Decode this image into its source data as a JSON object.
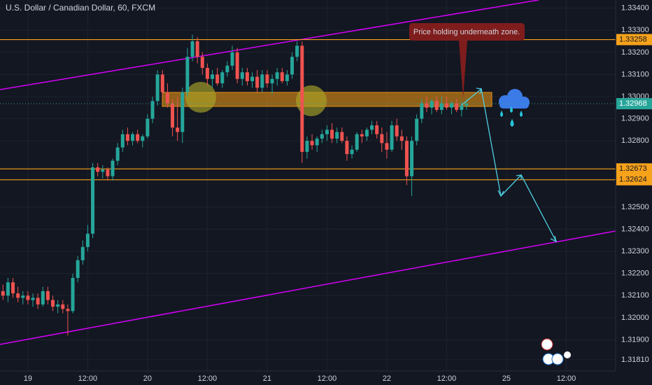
{
  "chart_data": {
    "type": "candlestick",
    "title": "U.S. Dollar / Canadian Dollar, 60, FXCM",
    "annotation": "Price holding underneath zone.",
    "up_color": "#26a69a",
    "down_color": "#ef5350",
    "xlim": [
      -5.6,
      117.9
    ],
    "ylim": [
      1.31759,
      1.33437
    ],
    "xticks": [
      {
        "value": 0,
        "label": "19"
      },
      {
        "value": 12,
        "label": "12:00"
      },
      {
        "value": 24,
        "label": "20"
      },
      {
        "value": 36,
        "label": "12:00"
      },
      {
        "value": 48,
        "label": "21"
      },
      {
        "value": 60,
        "label": "12:00"
      },
      {
        "value": 72,
        "label": "22"
      },
      {
        "value": 84,
        "label": "12:00"
      },
      {
        "value": 96,
        "label": "25"
      },
      {
        "value": 108,
        "label": "12:00"
      }
    ],
    "yticks": [
      {
        "value": 1.334,
        "label": "1.33400"
      },
      {
        "value": 1.333,
        "label": "1.33300"
      },
      {
        "value": 1.332,
        "label": "1.33200"
      },
      {
        "value": 1.331,
        "label": "1.33100"
      },
      {
        "value": 1.33,
        "label": "1.33000"
      },
      {
        "value": 1.329,
        "label": "1.32900"
      },
      {
        "value": 1.328,
        "label": "1.32800"
      },
      {
        "value": 1.325,
        "label": "1.32500"
      },
      {
        "value": 1.324,
        "label": "1.32400"
      },
      {
        "value": 1.323,
        "label": "1.32300"
      },
      {
        "value": 1.322,
        "label": "1.32200"
      },
      {
        "value": 1.321,
        "label": "1.32100"
      },
      {
        "value": 1.32,
        "label": "1.32000"
      },
      {
        "value": 1.319,
        "label": "1.31900"
      },
      {
        "value": 1.3181,
        "label": "1.31810"
      }
    ],
    "grid": true,
    "levels": [
      1.33258,
      1.32673,
      1.32624
    ],
    "level_color": "#f7a21b",
    "last_price": 1.32968,
    "last_price_color": "#26a69a",
    "x": [
      -5,
      -4,
      -3,
      -2,
      -1,
      0,
      1,
      2,
      3,
      4,
      5,
      6,
      7,
      8,
      9,
      10,
      11,
      12,
      13,
      14,
      15,
      16,
      17,
      18,
      19,
      20,
      21,
      22,
      23,
      24,
      25,
      26,
      27,
      28,
      29,
      30,
      31,
      32,
      33,
      34,
      35,
      36,
      37,
      38,
      39,
      40,
      41,
      42,
      43,
      44,
      45,
      46,
      47,
      48,
      49,
      50,
      51,
      52,
      53,
      54,
      55,
      56,
      57,
      58,
      59,
      60,
      61,
      62,
      63,
      64,
      65,
      66,
      67,
      68,
      69,
      70,
      71,
      72,
      73,
      74,
      75,
      76,
      77,
      78,
      79,
      80,
      81,
      82,
      83,
      84,
      85,
      86,
      87,
      88
    ],
    "ohlc": [
      [
        1.3212,
        1.3215,
        1.3208,
        1.321
      ],
      [
        1.321,
        1.3218,
        1.3207,
        1.3216
      ],
      [
        1.3216,
        1.3218,
        1.3209,
        1.3211
      ],
      [
        1.3211,
        1.3214,
        1.3207,
        1.3209
      ],
      [
        1.3209,
        1.3212,
        1.3206,
        1.321
      ],
      [
        1.321,
        1.3212,
        1.3206,
        1.3208
      ],
      [
        1.3208,
        1.3211,
        1.3205,
        1.3209
      ],
      [
        1.3209,
        1.3211,
        1.3204,
        1.3206
      ],
      [
        1.3206,
        1.3214,
        1.3205,
        1.3212
      ],
      [
        1.3212,
        1.3214,
        1.3206,
        1.3208
      ],
      [
        1.3208,
        1.321,
        1.3203,
        1.3205
      ],
      [
        1.3205,
        1.3208,
        1.3202,
        1.3206
      ],
      [
        1.3206,
        1.3208,
        1.3202,
        1.3204
      ],
      [
        1.3204,
        1.3206,
        1.3192,
        1.3203
      ],
      [
        1.3203,
        1.322,
        1.3202,
        1.3218
      ],
      [
        1.3218,
        1.3228,
        1.3216,
        1.3226
      ],
      [
        1.3226,
        1.3235,
        1.3224,
        1.3232
      ],
      [
        1.3232,
        1.3242,
        1.323,
        1.3238
      ],
      [
        1.3238,
        1.327,
        1.3236,
        1.3268
      ],
      [
        1.3268,
        1.327,
        1.3264,
        1.3266
      ],
      [
        1.3266,
        1.3269,
        1.3263,
        1.3267
      ],
      [
        1.3267,
        1.3268,
        1.3262,
        1.3264
      ],
      [
        1.3264,
        1.3272,
        1.3262,
        1.3271
      ],
      [
        1.3271,
        1.3279,
        1.3269,
        1.3277
      ],
      [
        1.3277,
        1.3285,
        1.3275,
        1.3283
      ],
      [
        1.3283,
        1.3286,
        1.3278,
        1.328
      ],
      [
        1.328,
        1.3284,
        1.3278,
        1.3283
      ],
      [
        1.3283,
        1.3285,
        1.3279,
        1.328
      ],
      [
        1.328,
        1.3283,
        1.3277,
        1.3282
      ],
      [
        1.3282,
        1.3292,
        1.3281,
        1.329
      ],
      [
        1.329,
        1.33,
        1.3288,
        1.3298
      ],
      [
        1.3298,
        1.3312,
        1.3296,
        1.331
      ],
      [
        1.331,
        1.3312,
        1.33,
        1.3302
      ],
      [
        1.3302,
        1.3306,
        1.3295,
        1.3297
      ],
      [
        1.3297,
        1.3299,
        1.3282,
        1.3286
      ],
      [
        1.3286,
        1.33,
        1.328,
        1.3284
      ],
      [
        1.3284,
        1.3304,
        1.3279,
        1.3302
      ],
      [
        1.3302,
        1.3322,
        1.33,
        1.3318
      ],
      [
        1.3318,
        1.3328,
        1.3316,
        1.3325
      ],
      [
        1.3325,
        1.3327,
        1.3315,
        1.3318
      ],
      [
        1.3318,
        1.332,
        1.331,
        1.3313
      ],
      [
        1.3313,
        1.3315,
        1.3305,
        1.3308
      ],
      [
        1.3308,
        1.3312,
        1.3304,
        1.331
      ],
      [
        1.331,
        1.3313,
        1.3305,
        1.3306
      ],
      [
        1.3306,
        1.3312,
        1.3304,
        1.3311
      ],
      [
        1.3311,
        1.3316,
        1.3309,
        1.3314
      ],
      [
        1.3314,
        1.3323,
        1.3312,
        1.332
      ],
      [
        1.332,
        1.3322,
        1.3306,
        1.3308
      ],
      [
        1.3308,
        1.3313,
        1.3305,
        1.3311
      ],
      [
        1.3311,
        1.3313,
        1.3305,
        1.3307
      ],
      [
        1.3307,
        1.3311,
        1.3304,
        1.3309
      ],
      [
        1.3309,
        1.3312,
        1.3302,
        1.3304
      ],
      [
        1.3304,
        1.3312,
        1.3302,
        1.331
      ],
      [
        1.331,
        1.3312,
        1.3304,
        1.3306
      ],
      [
        1.3306,
        1.331,
        1.3301,
        1.3308
      ],
      [
        1.3308,
        1.3313,
        1.3305,
        1.3311
      ],
      [
        1.3311,
        1.3313,
        1.3306,
        1.3307
      ],
      [
        1.3307,
        1.3312,
        1.3305,
        1.331
      ],
      [
        1.331,
        1.332,
        1.3308,
        1.3318
      ],
      [
        1.3318,
        1.3325,
        1.3316,
        1.3323
      ],
      [
        1.3323,
        1.3325,
        1.327,
        1.3275
      ],
      [
        1.3275,
        1.3282,
        1.3272,
        1.328
      ],
      [
        1.328,
        1.3283,
        1.3276,
        1.3278
      ],
      [
        1.3278,
        1.3282,
        1.3275,
        1.3281
      ],
      [
        1.3281,
        1.3285,
        1.3279,
        1.3283
      ],
      [
        1.3283,
        1.3287,
        1.328,
        1.3285
      ],
      [
        1.3285,
        1.3288,
        1.3279,
        1.3281
      ],
      [
        1.3281,
        1.3286,
        1.3279,
        1.3284
      ],
      [
        1.3284,
        1.3286,
        1.3279,
        1.328
      ],
      [
        1.328,
        1.3282,
        1.3271,
        1.3274
      ],
      [
        1.3274,
        1.3278,
        1.3272,
        1.3276
      ],
      [
        1.3276,
        1.3284,
        1.3275,
        1.3283
      ],
      [
        1.3283,
        1.3285,
        1.3279,
        1.3282
      ],
      [
        1.3282,
        1.3286,
        1.328,
        1.3285
      ],
      [
        1.3285,
        1.3289,
        1.3283,
        1.3287
      ],
      [
        1.3287,
        1.3289,
        1.3281,
        1.3283
      ],
      [
        1.3283,
        1.3286,
        1.3275,
        1.3279
      ],
      [
        1.3279,
        1.3284,
        1.3272,
        1.3276
      ],
      [
        1.3276,
        1.3289,
        1.3275,
        1.3287
      ],
      [
        1.3287,
        1.329,
        1.328,
        1.3282
      ],
      [
        1.3282,
        1.3285,
        1.3276,
        1.328
      ],
      [
        1.328,
        1.3282,
        1.326,
        1.3264
      ],
      [
        1.3264,
        1.3282,
        1.3255,
        1.328
      ],
      [
        1.328,
        1.3292,
        1.3278,
        1.329
      ],
      [
        1.329,
        1.3299,
        1.3288,
        1.3297
      ],
      [
        1.3297,
        1.33,
        1.3293,
        1.3295
      ],
      [
        1.3295,
        1.3299,
        1.3292,
        1.3298
      ],
      [
        1.3298,
        1.33,
        1.3293,
        1.3294
      ],
      [
        1.3294,
        1.33,
        1.3292,
        1.3297
      ],
      [
        1.3297,
        1.33,
        1.3294,
        1.3295
      ],
      [
        1.3295,
        1.3298,
        1.3292,
        1.3297
      ],
      [
        1.3297,
        1.3299,
        1.3293,
        1.3294
      ],
      [
        1.3294,
        1.3298,
        1.3291,
        1.3296
      ],
      [
        1.3296,
        1.3299,
        1.3294,
        1.32968
      ]
    ]
  }
}
